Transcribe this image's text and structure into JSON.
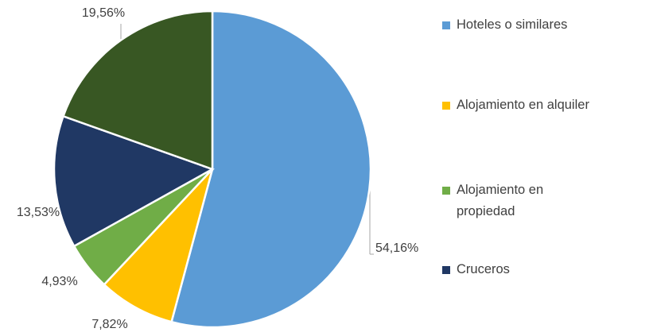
{
  "chart_data": {
    "type": "pie",
    "categories": [
      "Hoteles o similares",
      "Alojamiento en alquiler",
      "Alojamiento en propiedad",
      "Cruceros",
      null
    ],
    "values": [
      54.16,
      7.82,
      4.93,
      13.53,
      19.56
    ],
    "value_labels": [
      "54,16%",
      "7,82%",
      "4,93%",
      "13,53%",
      "19,56%"
    ],
    "colors": [
      "#5b9bd5",
      "#ffc000",
      "#70ad47",
      "#203864",
      "#385723"
    ],
    "legend": "right"
  }
}
